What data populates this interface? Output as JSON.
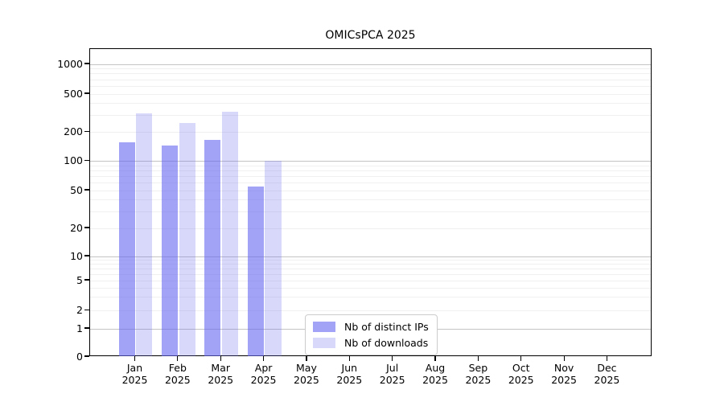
{
  "chart_data": {
    "type": "bar",
    "title": "OMICsPCA 2025",
    "categories": [
      "Jan 2025",
      "Feb 2025",
      "Mar 2025",
      "Apr 2025",
      "May 2025",
      "Jun 2025",
      "Jul 2025",
      "Aug 2025",
      "Sep 2025",
      "Oct 2025",
      "Nov 2025",
      "Dec 2025"
    ],
    "series": [
      {
        "name": "Nb of distinct IPs",
        "color": "rgba(100,100,240,0.60)",
        "values": [
          157,
          145,
          165,
          55,
          0,
          0,
          0,
          0,
          0,
          0,
          0,
          0
        ]
      },
      {
        "name": "Nb of downloads",
        "color": "rgba(100,100,240,0.25)",
        "values": [
          314,
          248,
          328,
          101,
          0,
          0,
          0,
          0,
          0,
          0,
          0,
          0
        ]
      }
    ],
    "yticks": [
      0,
      1,
      2,
      5,
      10,
      20,
      50,
      100,
      200,
      500,
      1000
    ],
    "yscale": "symlog",
    "ylim": [
      0,
      1400
    ],
    "xlabel": "",
    "ylabel": "",
    "grid": "horizontal, minor and major decade lines",
    "legend_position": "lower center",
    "colors": {
      "bar_base": "#6464f0",
      "grid_major": "#c4c4c4",
      "grid_minor": "#f0f0f0",
      "spine": "#000000",
      "background": "#ffffff"
    }
  }
}
